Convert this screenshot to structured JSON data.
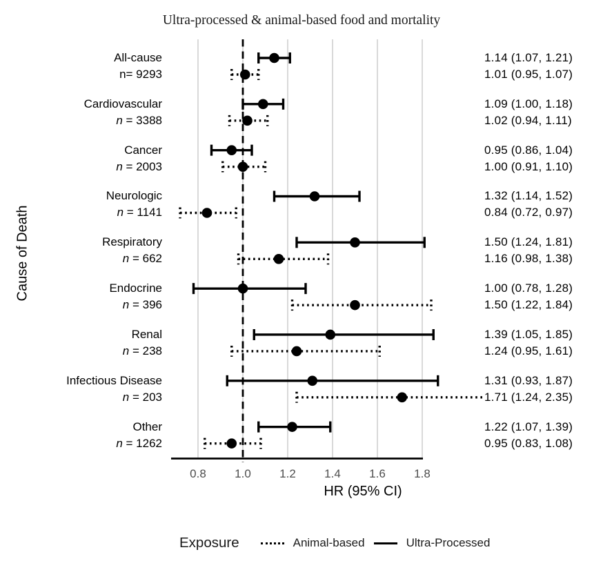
{
  "title": "Ultra-processed & animal-based food and mortality",
  "axes": {
    "x_label": "HR (95% CI)",
    "y_label": "Cause of Death"
  },
  "legend": {
    "title": "Exposure",
    "items": [
      {
        "label": "Animal-based",
        "line_style": "dotted"
      },
      {
        "label": "Ultra-Processed",
        "line_style": "solid"
      }
    ]
  },
  "chart_data": {
    "type": "forest",
    "title": "Ultra-processed & animal-based food and mortality",
    "xlabel": "HR (95% CI)",
    "ylabel": "Cause of Death",
    "x_ticks": [
      0.8,
      1.0,
      1.2,
      1.4,
      1.6,
      1.8
    ],
    "x_range": [
      0.8,
      1.8
    ],
    "reference_line_x": 1.0,
    "grid": "vertical-light-gray",
    "series_styles": {
      "ultra_processed": "solid",
      "animal_based": "dotted"
    },
    "groups": [
      {
        "cause": "All-cause",
        "n_label": "n= 9293",
        "n_italic": false,
        "ultra_processed": {
          "hr": 1.14,
          "ci_low": 1.07,
          "ci_high": 1.21,
          "label": "1.14 (1.07, 1.21)"
        },
        "animal_based": {
          "hr": 1.01,
          "ci_low": 0.95,
          "ci_high": 1.07,
          "label": "1.01 (0.95, 1.07)"
        }
      },
      {
        "cause": "Cardiovascular",
        "n_label": "n = 3388",
        "n_italic": true,
        "ultra_processed": {
          "hr": 1.09,
          "ci_low": 1.0,
          "ci_high": 1.18,
          "label": "1.09 (1.00, 1.18)"
        },
        "animal_based": {
          "hr": 1.02,
          "ci_low": 0.94,
          "ci_high": 1.11,
          "label": "1.02 (0.94, 1.11)"
        }
      },
      {
        "cause": "Cancer",
        "n_label": "n = 2003",
        "n_italic": true,
        "ultra_processed": {
          "hr": 0.95,
          "ci_low": 0.86,
          "ci_high": 1.04,
          "label": "0.95 (0.86, 1.04)"
        },
        "animal_based": {
          "hr": 1.0,
          "ci_low": 0.91,
          "ci_high": 1.1,
          "label": "1.00 (0.91, 1.10)"
        }
      },
      {
        "cause": "Neurologic",
        "n_label": "n = 1141",
        "n_italic": true,
        "ultra_processed": {
          "hr": 1.32,
          "ci_low": 1.14,
          "ci_high": 1.52,
          "label": "1.32 (1.14, 1.52)"
        },
        "animal_based": {
          "hr": 0.84,
          "ci_low": 0.72,
          "ci_high": 0.97,
          "label": "0.84 (0.72, 0.97)"
        }
      },
      {
        "cause": "Respiratory",
        "n_label": "n = 662",
        "n_italic": true,
        "ultra_processed": {
          "hr": 1.5,
          "ci_low": 1.24,
          "ci_high": 1.81,
          "label": "1.50 (1.24, 1.81)"
        },
        "animal_based": {
          "hr": 1.16,
          "ci_low": 0.98,
          "ci_high": 1.38,
          "label": "1.16 (0.98, 1.38)"
        }
      },
      {
        "cause": "Endocrine",
        "n_label": "n = 396",
        "n_italic": true,
        "ultra_processed": {
          "hr": 1.0,
          "ci_low": 0.78,
          "ci_high": 1.28,
          "label": "1.00 (0.78, 1.28)"
        },
        "animal_based": {
          "hr": 1.5,
          "ci_low": 1.22,
          "ci_high": 1.84,
          "label": "1.50 (1.22, 1.84)"
        }
      },
      {
        "cause": "Renal",
        "n_label": "n = 238",
        "n_italic": true,
        "ultra_processed": {
          "hr": 1.39,
          "ci_low": 1.05,
          "ci_high": 1.85,
          "label": "1.39 (1.05, 1.85)"
        },
        "animal_based": {
          "hr": 1.24,
          "ci_low": 0.95,
          "ci_high": 1.61,
          "label": "1.24 (0.95, 1.61)"
        }
      },
      {
        "cause": "Infectious Disease",
        "n_label": "n = 203",
        "n_italic": true,
        "ultra_processed": {
          "hr": 1.31,
          "ci_low": 0.93,
          "ci_high": 1.87,
          "label": "1.31 (0.93, 1.87)"
        },
        "animal_based": {
          "hr": 1.71,
          "ci_low": 1.24,
          "ci_high": 2.35,
          "label": "1.71 (1.24, 2.35)"
        }
      },
      {
        "cause": "Other",
        "n_label": "n = 1262",
        "n_italic": true,
        "ultra_processed": {
          "hr": 1.22,
          "ci_low": 1.07,
          "ci_high": 1.39,
          "label": "1.22 (1.07, 1.39)"
        },
        "animal_based": {
          "hr": 0.95,
          "ci_low": 0.83,
          "ci_high": 1.08,
          "label": "0.95 (0.83, 1.08)"
        }
      }
    ],
    "colors": {
      "marker": "#000000",
      "gridline": "#d9d9d9",
      "tick_label": "#4d4d4d"
    }
  }
}
